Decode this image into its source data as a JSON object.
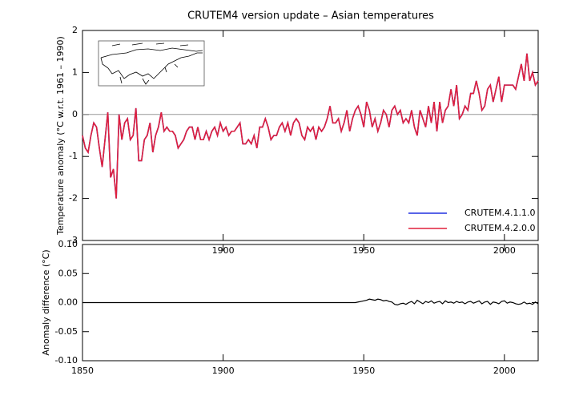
{
  "chart_data": [
    {
      "type": "line",
      "title": "CRUTEM4 version update – Asian temperatures",
      "ylabel": "Temperature anomaly (°C w.r.t. 1961 – 1990)",
      "xlim": [
        1850,
        2012
      ],
      "ylim": [
        -3,
        2
      ],
      "yticks": [
        -3,
        -2,
        -1,
        0,
        1,
        2
      ],
      "xticks": [
        1850,
        1900,
        1950,
        2000
      ],
      "zero_line": true,
      "legend": "lower right",
      "x": [
        1850,
        1851,
        1852,
        1853,
        1854,
        1855,
        1856,
        1857,
        1858,
        1859,
        1860,
        1861,
        1862,
        1863,
        1864,
        1865,
        1866,
        1867,
        1868,
        1869,
        1870,
        1871,
        1872,
        1873,
        1874,
        1875,
        1876,
        1877,
        1878,
        1879,
        1880,
        1881,
        1882,
        1883,
        1884,
        1885,
        1886,
        1887,
        1888,
        1889,
        1890,
        1891,
        1892,
        1893,
        1894,
        1895,
        1896,
        1897,
        1898,
        1899,
        1900,
        1901,
        1902,
        1903,
        1904,
        1905,
        1906,
        1907,
        1908,
        1909,
        1910,
        1911,
        1912,
        1913,
        1914,
        1915,
        1916,
        1917,
        1918,
        1919,
        1920,
        1921,
        1922,
        1923,
        1924,
        1925,
        1926,
        1927,
        1928,
        1929,
        1930,
        1931,
        1932,
        1933,
        1934,
        1935,
        1936,
        1937,
        1938,
        1939,
        1940,
        1941,
        1942,
        1943,
        1944,
        1945,
        1946,
        1947,
        1948,
        1949,
        1950,
        1951,
        1952,
        1953,
        1954,
        1955,
        1956,
        1957,
        1958,
        1959,
        1960,
        1961,
        1962,
        1963,
        1964,
        1965,
        1966,
        1967,
        1968,
        1969,
        1970,
        1971,
        1972,
        1973,
        1974,
        1975,
        1976,
        1977,
        1978,
        1979,
        1980,
        1981,
        1982,
        1983,
        1984,
        1985,
        1986,
        1987,
        1988,
        1989,
        1990,
        1991,
        1992,
        1993,
        1994,
        1995,
        1996,
        1997,
        1998,
        1999,
        2000,
        2001,
        2002,
        2003,
        2004,
        2005,
        2006,
        2007,
        2008,
        2009,
        2010,
        2011,
        2012
      ],
      "series": [
        {
          "name": "CRUTEM.4.1.1.0",
          "color": "#2030e0",
          "values": [
            -0.5,
            -0.8,
            -0.9,
            -0.5,
            -0.2,
            -0.3,
            -0.8,
            -1.25,
            -0.6,
            0.05,
            -1.5,
            -1.3,
            -2.0,
            0.0,
            -0.6,
            -0.2,
            -0.1,
            -0.6,
            -0.5,
            0.15,
            -1.1,
            -1.1,
            -0.6,
            -0.5,
            -0.2,
            -0.9,
            -0.5,
            -0.3,
            0.05,
            -0.4,
            -0.3,
            -0.4,
            -0.4,
            -0.5,
            -0.8,
            -0.7,
            -0.6,
            -0.4,
            -0.3,
            -0.3,
            -0.6,
            -0.3,
            -0.6,
            -0.6,
            -0.4,
            -0.6,
            -0.4,
            -0.3,
            -0.5,
            -0.2,
            -0.4,
            -0.3,
            -0.5,
            -0.4,
            -0.4,
            -0.3,
            -0.2,
            -0.7,
            -0.7,
            -0.6,
            -0.7,
            -0.5,
            -0.8,
            -0.3,
            -0.3,
            -0.1,
            -0.3,
            -0.6,
            -0.5,
            -0.5,
            -0.3,
            -0.2,
            -0.4,
            -0.2,
            -0.5,
            -0.2,
            -0.1,
            -0.2,
            -0.5,
            -0.6,
            -0.3,
            -0.4,
            -0.3,
            -0.6,
            -0.3,
            -0.4,
            -0.3,
            -0.1,
            0.2,
            -0.2,
            -0.2,
            -0.1,
            -0.4,
            -0.2,
            0.1,
            -0.4,
            -0.1,
            0.1,
            0.2,
            0.0,
            -0.3,
            0.3,
            0.1,
            -0.3,
            -0.1,
            -0.4,
            -0.2,
            0.1,
            0.0,
            -0.3,
            0.1,
            0.2,
            0.0,
            0.1,
            -0.2,
            -0.1,
            -0.2,
            0.1,
            -0.3,
            -0.5,
            0.1,
            -0.1,
            -0.3,
            0.2,
            -0.2,
            0.3,
            -0.4,
            0.3,
            -0.2,
            0.1,
            0.2,
            0.6,
            0.2,
            0.7,
            -0.1,
            0.0,
            0.2,
            0.1,
            0.5,
            0.5,
            0.8,
            0.5,
            0.1,
            0.2,
            0.6,
            0.7,
            0.3,
            0.6,
            0.9,
            0.3,
            0.7,
            0.7,
            0.7,
            0.7,
            0.6,
            0.9,
            1.2,
            0.8,
            1.45,
            0.8,
            1.0,
            0.7,
            0.8
          ]
        },
        {
          "name": "CRUTEM.4.2.0.0",
          "color": "#e0203c",
          "values": [
            -0.5,
            -0.8,
            -0.9,
            -0.5,
            -0.2,
            -0.3,
            -0.8,
            -1.25,
            -0.6,
            0.05,
            -1.5,
            -1.3,
            -2.0,
            0.0,
            -0.6,
            -0.2,
            -0.1,
            -0.6,
            -0.5,
            0.15,
            -1.1,
            -1.1,
            -0.6,
            -0.5,
            -0.2,
            -0.9,
            -0.5,
            -0.3,
            0.05,
            -0.4,
            -0.3,
            -0.4,
            -0.4,
            -0.5,
            -0.8,
            -0.7,
            -0.6,
            -0.4,
            -0.3,
            -0.3,
            -0.6,
            -0.3,
            -0.6,
            -0.6,
            -0.4,
            -0.6,
            -0.4,
            -0.3,
            -0.5,
            -0.2,
            -0.4,
            -0.3,
            -0.5,
            -0.4,
            -0.4,
            -0.3,
            -0.2,
            -0.7,
            -0.7,
            -0.6,
            -0.7,
            -0.5,
            -0.8,
            -0.3,
            -0.3,
            -0.1,
            -0.3,
            -0.6,
            -0.5,
            -0.5,
            -0.3,
            -0.2,
            -0.4,
            -0.2,
            -0.5,
            -0.2,
            -0.1,
            -0.2,
            -0.5,
            -0.6,
            -0.3,
            -0.4,
            -0.3,
            -0.6,
            -0.3,
            -0.4,
            -0.3,
            -0.1,
            0.2,
            -0.2,
            -0.2,
            -0.1,
            -0.4,
            -0.2,
            0.1,
            -0.4,
            -0.1,
            0.1,
            0.2,
            0.0,
            -0.3,
            0.3,
            0.1,
            -0.3,
            -0.1,
            -0.4,
            -0.2,
            0.1,
            0.0,
            -0.3,
            0.1,
            0.2,
            0.0,
            0.1,
            -0.2,
            -0.1,
            -0.2,
            0.1,
            -0.3,
            -0.5,
            0.1,
            -0.1,
            -0.3,
            0.2,
            -0.2,
            0.3,
            -0.4,
            0.3,
            -0.2,
            0.1,
            0.2,
            0.6,
            0.2,
            0.7,
            -0.1,
            0.0,
            0.2,
            0.1,
            0.5,
            0.5,
            0.8,
            0.5,
            0.1,
            0.2,
            0.6,
            0.7,
            0.3,
            0.6,
            0.9,
            0.3,
            0.7,
            0.7,
            0.7,
            0.7,
            0.6,
            0.9,
            1.2,
            0.8,
            1.45,
            0.8,
            1.0,
            0.7,
            0.8
          ]
        }
      ]
    },
    {
      "type": "line",
      "ylabel": "Anomaly difference (°C)",
      "xlim": [
        1850,
        2012
      ],
      "ylim": [
        -0.1,
        0.1
      ],
      "yticks": [
        {
          "value": -0.1,
          "label": "-0.10"
        },
        {
          "value": -0.05,
          "label": "-0.05"
        },
        {
          "value": 0,
          "label": "0.00"
        },
        {
          "value": 0.05,
          "label": "0.05"
        },
        {
          "value": 0.1,
          "label": "0.10"
        }
      ],
      "xticks": [
        1850,
        1900,
        1950,
        2000
      ],
      "x": [
        1850,
        1851,
        1852,
        1853,
        1854,
        1855,
        1856,
        1857,
        1858,
        1859,
        1860,
        1861,
        1862,
        1863,
        1864,
        1865,
        1866,
        1867,
        1868,
        1869,
        1870,
        1871,
        1872,
        1873,
        1874,
        1875,
        1876,
        1877,
        1878,
        1879,
        1880,
        1881,
        1882,
        1883,
        1884,
        1885,
        1886,
        1887,
        1888,
        1889,
        1890,
        1891,
        1892,
        1893,
        1894,
        1895,
        1896,
        1897,
        1898,
        1899,
        1900,
        1901,
        1902,
        1903,
        1904,
        1905,
        1906,
        1907,
        1908,
        1909,
        1910,
        1911,
        1912,
        1913,
        1914,
        1915,
        1916,
        1917,
        1918,
        1919,
        1920,
        1921,
        1922,
        1923,
        1924,
        1925,
        1926,
        1927,
        1928,
        1929,
        1930,
        1931,
        1932,
        1933,
        1934,
        1935,
        1936,
        1937,
        1938,
        1939,
        1940,
        1941,
        1942,
        1943,
        1944,
        1945,
        1946,
        1947,
        1948,
        1949,
        1950,
        1951,
        1952,
        1953,
        1954,
        1955,
        1956,
        1957,
        1958,
        1959,
        1960,
        1961,
        1962,
        1963,
        1964,
        1965,
        1966,
        1967,
        1968,
        1969,
        1970,
        1971,
        1972,
        1973,
        1974,
        1975,
        1976,
        1977,
        1978,
        1979,
        1980,
        1981,
        1982,
        1983,
        1984,
        1985,
        1986,
        1987,
        1988,
        1989,
        1990,
        1991,
        1992,
        1993,
        1994,
        1995,
        1996,
        1997,
        1998,
        1999,
        2000,
        2001,
        2002,
        2003,
        2004,
        2005,
        2006,
        2007,
        2008,
        2009,
        2010,
        2011,
        2012
      ],
      "series": [
        {
          "color": "#000000",
          "values": [
            0,
            0,
            0,
            0,
            0,
            0,
            0,
            0,
            0,
            0,
            0,
            0,
            0,
            0,
            0,
            0,
            0,
            0,
            0,
            0,
            0,
            0,
            0,
            0,
            0,
            0,
            0,
            0,
            0,
            0,
            0,
            0,
            0,
            0,
            0,
            0,
            0,
            0,
            0,
            0,
            0,
            0,
            0,
            0,
            0,
            0,
            0,
            0,
            0,
            0,
            0,
            0,
            0,
            0,
            0,
            0,
            0,
            0,
            0,
            0,
            0,
            0,
            0,
            0,
            0,
            0,
            0,
            0,
            0,
            0,
            0,
            0,
            0,
            0,
            0,
            0,
            0,
            0,
            0,
            0,
            0,
            0,
            0,
            0,
            0,
            0,
            0,
            0,
            0,
            0,
            0,
            0,
            0,
            0,
            0,
            0,
            0,
            0,
            0.001,
            0.002,
            0.003,
            0.004,
            0.006,
            0.005,
            0.004,
            0.006,
            0.005,
            0.003,
            0.004,
            0.002,
            0.001,
            -0.003,
            -0.004,
            -0.002,
            -0.001,
            -0.003,
            0,
            0.002,
            -0.002,
            0.004,
            0.001,
            -0.002,
            0.002,
            0,
            0.003,
            -0.001,
            0.001,
            0.002,
            -0.002,
            0.003,
            0,
            0.001,
            -0.001,
            0.002,
            0,
            0.001,
            -0.002,
            0.001,
            0.002,
            -0.001,
            0.001,
            0.003,
            -0.002,
            0.001,
            0.002,
            -0.003,
            0.001,
            0,
            -0.002,
            0.002,
            0.003,
            -0.001,
            0.001,
            0,
            -0.002,
            -0.003,
            -0.002,
            0.001,
            -0.002,
            -0.001,
            -0.003,
            0.001,
            -0.002
          ]
        }
      ]
    }
  ]
}
